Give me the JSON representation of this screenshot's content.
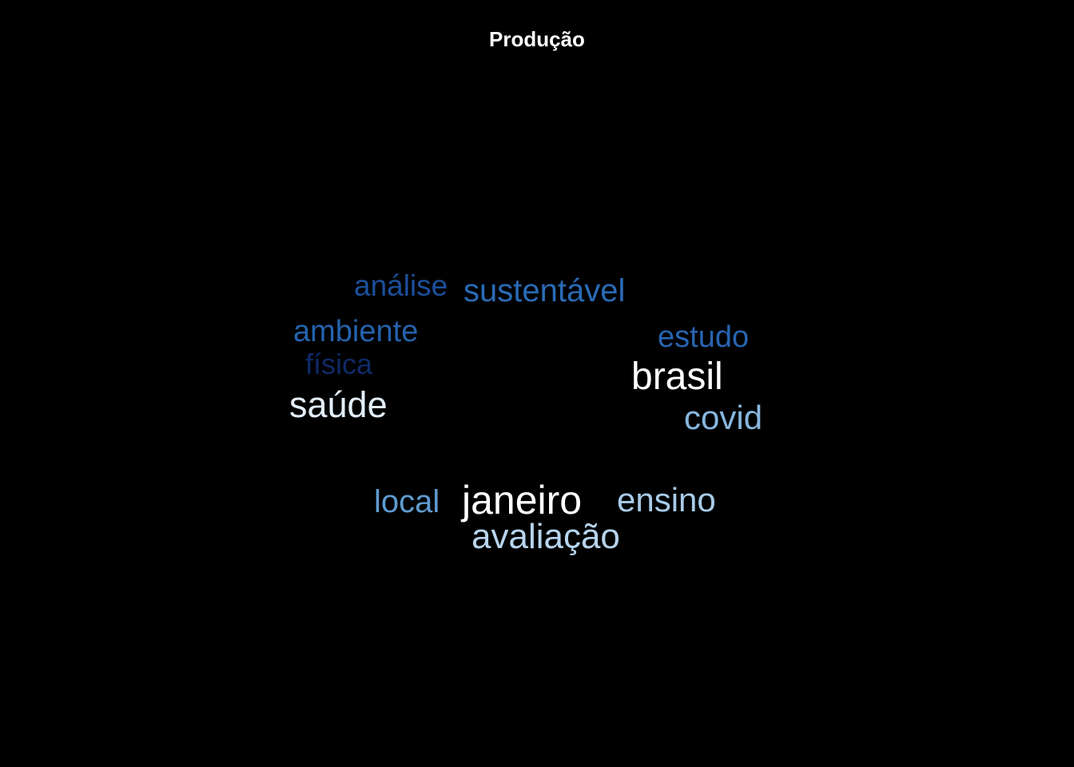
{
  "page": {
    "title": "Produção",
    "background": "#000000"
  },
  "word_cloud": {
    "words": [
      {
        "key": "analise",
        "text": "análise",
        "color": "#1c4f9c"
      },
      {
        "key": "sustentavel",
        "text": "sustentável",
        "color": "#2a6bb6"
      },
      {
        "key": "ambiente",
        "text": "ambiente",
        "color": "#2462ad"
      },
      {
        "key": "estudo",
        "text": "estudo",
        "color": "#2764b0"
      },
      {
        "key": "fisica",
        "text": "física",
        "color": "#102a66"
      },
      {
        "key": "brasil",
        "text": "brasil",
        "color": "#ffffff"
      },
      {
        "key": "saude",
        "text": "saúde",
        "color": "#e3eefa"
      },
      {
        "key": "covid",
        "text": "covid",
        "color": "#87b7df"
      },
      {
        "key": "local",
        "text": "local",
        "color": "#5f9bd0"
      },
      {
        "key": "janeiro",
        "text": "janeiro",
        "color": "#ffffff"
      },
      {
        "key": "ensino",
        "text": "ensino",
        "color": "#a8cbe9"
      },
      {
        "key": "avaliacao",
        "text": "avaliação",
        "color": "#b7d4ee"
      }
    ]
  }
}
